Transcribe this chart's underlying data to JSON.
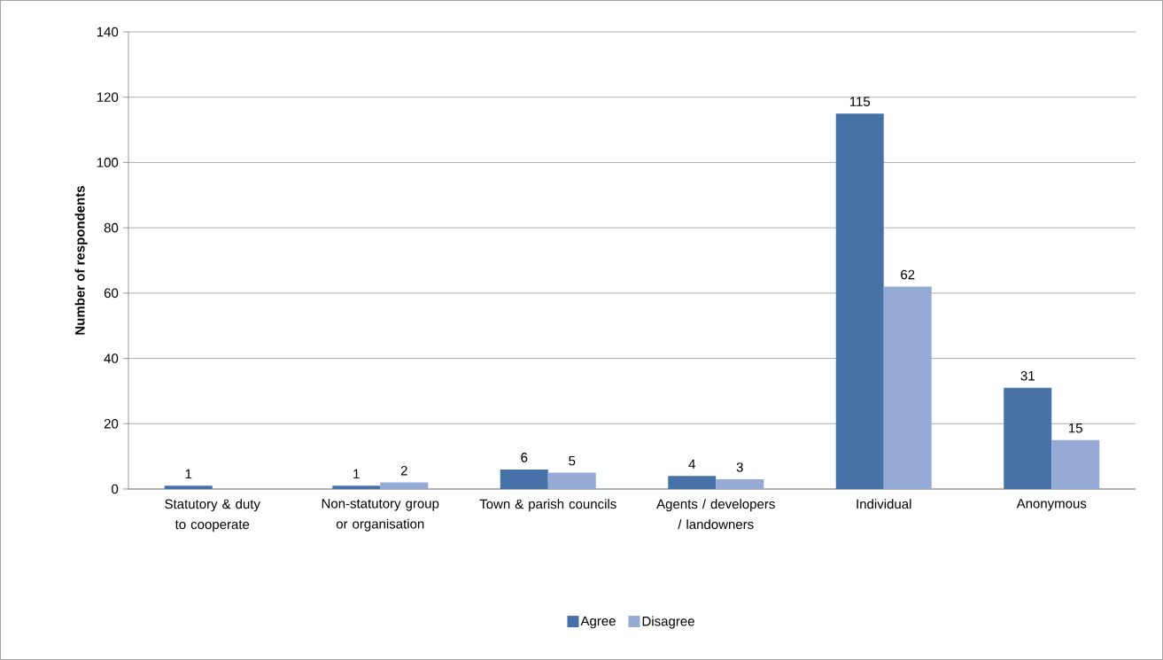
{
  "chart_data": {
    "type": "bar",
    "ylabel": "Number of respondents",
    "categories": [
      "Statutory & duty to cooperate",
      "Non-statutory group or organisation",
      "Town & parish councils",
      "Agents / developers / landowners",
      "Individual",
      "Anonymous"
    ],
    "series": [
      {
        "name": "Agree",
        "color": "#4672a8",
        "values": [
          1,
          1,
          6,
          4,
          115,
          31
        ]
      },
      {
        "name": "Disagree",
        "color": "#95abd5",
        "values": [
          null,
          2,
          5,
          3,
          62,
          15
        ]
      }
    ],
    "ylim": [
      0,
      140
    ],
    "yticks": [
      0,
      20,
      40,
      60,
      80,
      100,
      120,
      140
    ],
    "grid": "y",
    "legend": "bottom",
    "data_labels": true
  }
}
